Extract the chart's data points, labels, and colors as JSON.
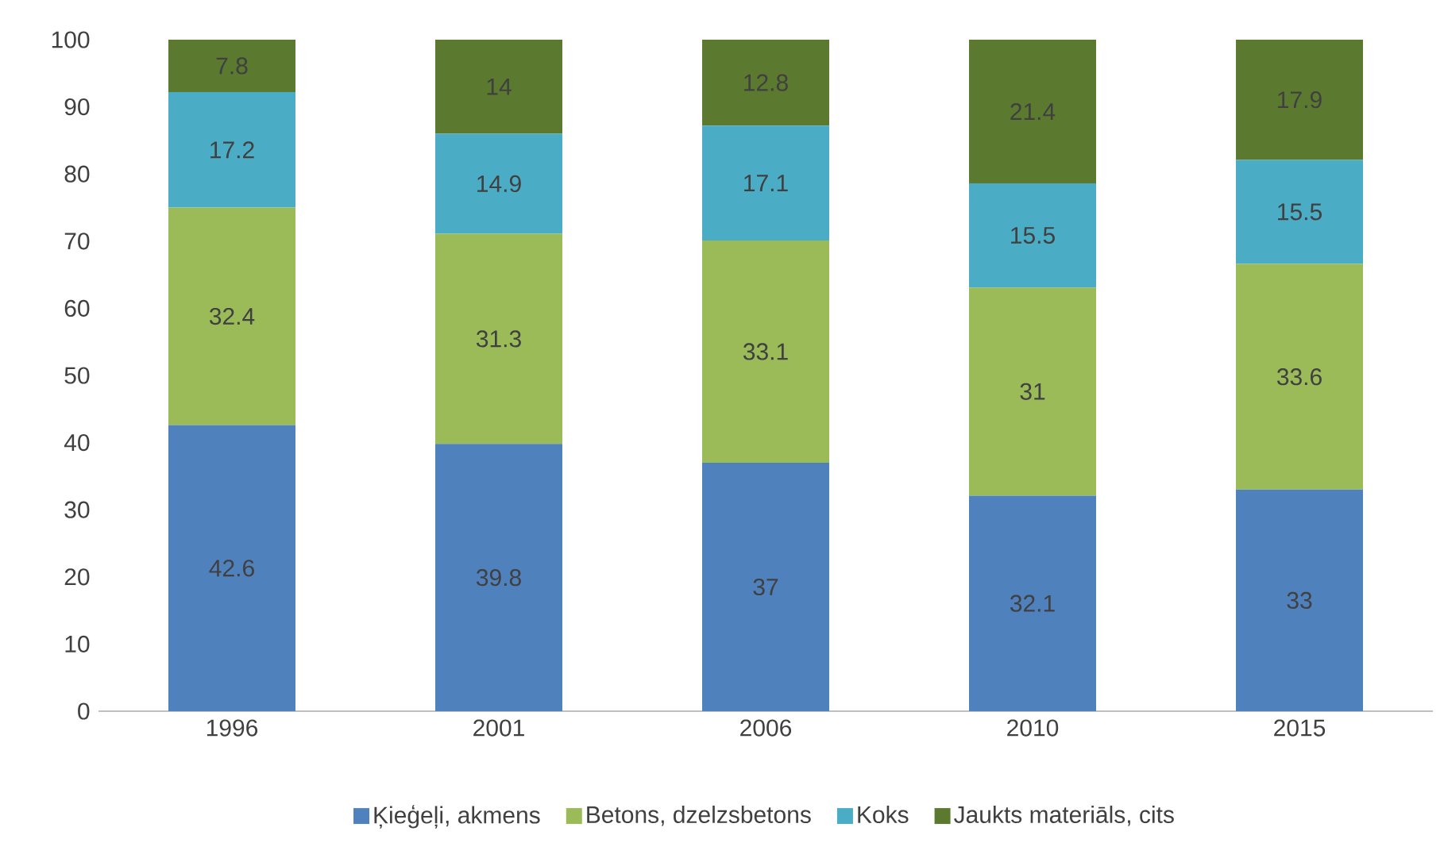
{
  "chart_data": {
    "type": "bar",
    "stacked": true,
    "data_labels": true,
    "legend": "bottom",
    "grid": false,
    "categories": [
      "1996",
      "2001",
      "2006",
      "2010",
      "2015"
    ],
    "ylim": [
      0,
      100
    ],
    "yticks": [
      0,
      10,
      20,
      30,
      40,
      50,
      60,
      70,
      80,
      90,
      100
    ],
    "series": [
      {
        "name": "Ķieģeļi, akmens",
        "color": "#4f81bd",
        "values": [
          42.6,
          39.8,
          37,
          32.1,
          33
        ]
      },
      {
        "name": "Betons, dzelzsbetons",
        "color": "#9bbb59",
        "values": [
          32.4,
          31.3,
          33.1,
          31,
          33.6
        ]
      },
      {
        "name": "Koks",
        "color": "#4bacc6",
        "values": [
          17.2,
          14.9,
          17.1,
          15.5,
          15.5
        ]
      },
      {
        "name": "Jaukts materiāls, cits",
        "color": "#5b7a2f",
        "values": [
          7.8,
          14,
          12.8,
          21.4,
          17.9
        ]
      }
    ]
  }
}
